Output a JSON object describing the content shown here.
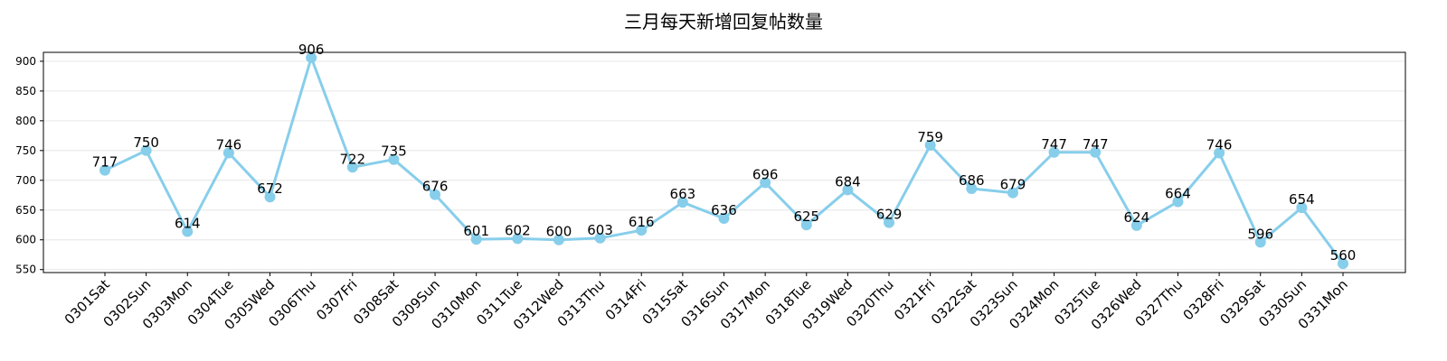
{
  "chart_data": {
    "type": "line",
    "title": "三月每天新增回复帖数量",
    "xlabel": "",
    "ylabel": "",
    "categories": [
      "0301Sat",
      "0302Sun",
      "0303Mon",
      "0304Tue",
      "0305Wed",
      "0306Thu",
      "0307Fri",
      "0308Sat",
      "0309Sun",
      "0310Mon",
      "0311Tue",
      "0312Wed",
      "0313Thu",
      "0314Fri",
      "0315Sat",
      "0316Sun",
      "0317Mon",
      "0318Tue",
      "0319Wed",
      "0320Thu",
      "0321Fri",
      "0322Sat",
      "0323Sun",
      "0324Mon",
      "0325Tue",
      "0326Wed",
      "0327Thu",
      "0328Fri",
      "0329Sat",
      "0330Sun",
      "0331Mon"
    ],
    "values": [
      717,
      750,
      614,
      746,
      672,
      906,
      722,
      735,
      676,
      601,
      602,
      600,
      603,
      616,
      663,
      636,
      696,
      625,
      684,
      629,
      759,
      686,
      679,
      747,
      747,
      624,
      664,
      746,
      596,
      654,
      560
    ],
    "ylim": [
      545,
      915
    ],
    "yticks": [
      550,
      600,
      650,
      700,
      750,
      800,
      850,
      900
    ],
    "grid": "horizontal",
    "line_color": "#87CEEB",
    "marker_color": "#87CEEB",
    "data_labels": true,
    "xtick_rotation": 45
  }
}
